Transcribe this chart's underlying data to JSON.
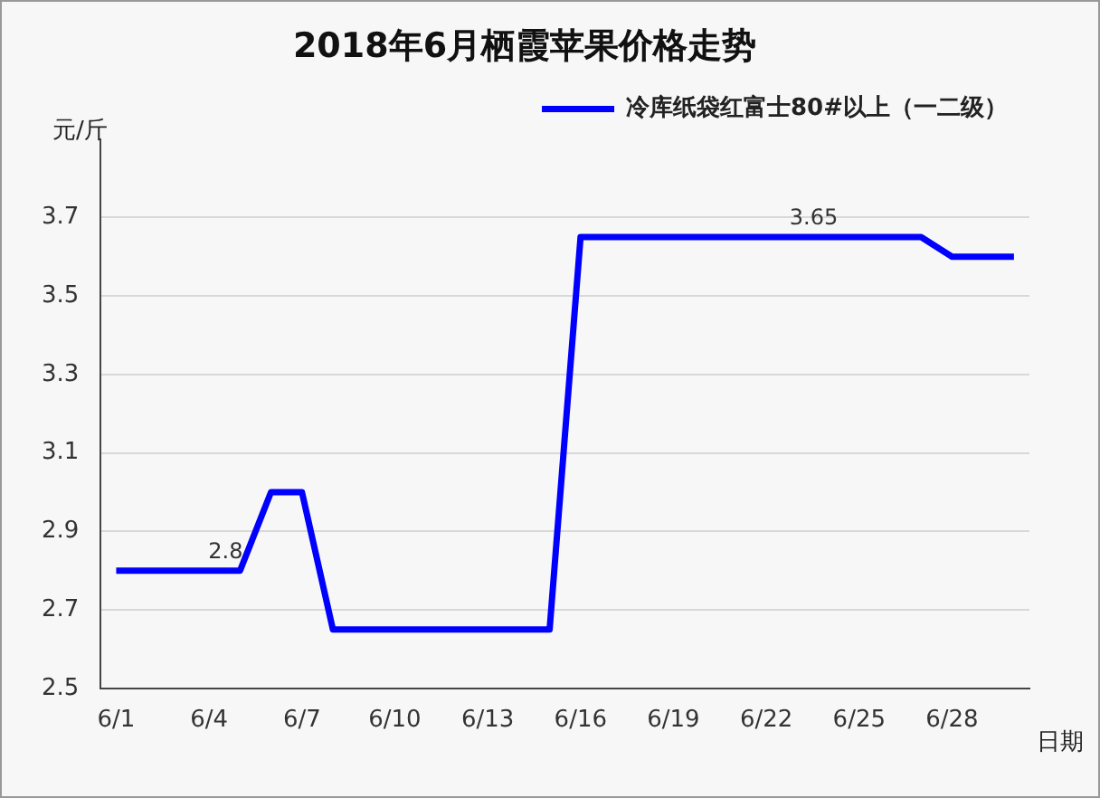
{
  "chart_data": {
    "type": "line",
    "title": "2018年6月栖霞苹果价格走势",
    "ylabel": "元/斤",
    "xlabel": "日期",
    "categories": [
      "6/1",
      null,
      null,
      "6/4",
      null,
      null,
      "6/7",
      null,
      null,
      "6/10",
      null,
      null,
      "6/13",
      null,
      null,
      "6/16",
      null,
      null,
      "6/19",
      null,
      null,
      "6/22",
      null,
      null,
      "6/25",
      null,
      null,
      "6/28",
      null,
      null
    ],
    "series": [
      {
        "name": "冷库纸袋红富士80#以上（一二级）",
        "color": "#0000ff",
        "values": [
          2.8,
          2.8,
          2.8,
          2.8,
          2.8,
          3.0,
          3.0,
          2.65,
          2.65,
          2.65,
          2.65,
          2.65,
          2.65,
          2.65,
          2.65,
          3.65,
          3.65,
          3.65,
          3.65,
          3.65,
          3.65,
          3.65,
          3.65,
          3.65,
          3.65,
          3.65,
          3.65,
          3.6,
          3.6,
          3.6
        ],
        "value_labels": [
          null,
          null,
          null,
          null,
          "2.8",
          null,
          null,
          null,
          null,
          null,
          null,
          null,
          null,
          null,
          null,
          null,
          null,
          null,
          null,
          null,
          null,
          null,
          null,
          "3.65",
          null,
          null,
          null,
          null,
          null,
          null
        ]
      }
    ],
    "ylim": [
      2.5,
      3.9
    ],
    "yticks": [
      2.5,
      2.7,
      2.9,
      3.1,
      3.3,
      3.5,
      3.7
    ],
    "grid": "y",
    "legend": "top right",
    "marker": "none",
    "line_style": "solid"
  }
}
